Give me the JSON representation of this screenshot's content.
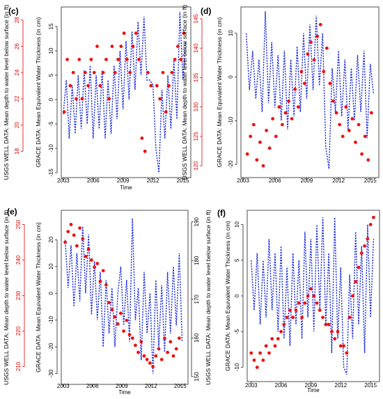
{
  "chart_data": [
    {
      "type": "line",
      "panel_label": "(c)",
      "xlabel": "Time",
      "ylabel_left": "USGS WELL DATA: Mean depth to water level below surface (in ft)",
      "ylabel_inner": "GRACE DATA: Mean Equivalent Water Thickness (in cm)",
      "x_ticks": [
        "2003",
        "2006",
        "2009",
        "2012",
        "2015"
      ],
      "xlim": [
        2002.8,
        2015.8
      ],
      "grace_ylim": [
        -16,
        19
      ],
      "grace_ticks": [
        -15,
        -10,
        -5,
        0,
        5,
        10,
        15
      ],
      "well_ylim": [
        16,
        29
      ],
      "well_ticks": [
        18,
        20,
        22,
        24,
        26,
        28
      ],
      "series": [
        {
          "name": "GRACE",
          "color": "#1f2fd8",
          "x": [
            2003.0,
            2003.3,
            2003.6,
            2003.9,
            2004.2,
            2004.5,
            2004.8,
            2005.1,
            2005.4,
            2005.7,
            2006.0,
            2006.3,
            2006.6,
            2006.9,
            2007.2,
            2007.5,
            2007.8,
            2008.1,
            2008.4,
            2008.7,
            2009.0,
            2009.3,
            2009.6,
            2009.9,
            2010.2,
            2010.5,
            2010.8,
            2011.1,
            2011.4,
            2011.7,
            2012.0,
            2012.3,
            2012.6,
            2012.9,
            2013.2,
            2013.5,
            2013.8,
            2014.1,
            2014.4,
            2014.7,
            2015.0,
            2015.3
          ],
          "y": [
            -3,
            4,
            -8,
            3,
            -7,
            5,
            -6,
            6,
            -5,
            7,
            -8,
            5,
            -6,
            6,
            -8,
            4,
            -7,
            7,
            -4,
            10,
            -2,
            12,
            0,
            14,
            2,
            16,
            5,
            17,
            4,
            4,
            3,
            -10,
            -15,
            2,
            -8,
            5,
            -6,
            8,
            -4,
            18,
            4,
            12
          ]
        },
        {
          "name": "USGS",
          "color": "#ee1111",
          "x": [
            2003.1,
            2003.4,
            2003.7,
            2004.0,
            2004.3,
            2004.6,
            2004.9,
            2005.2,
            2005.5,
            2005.8,
            2006.1,
            2006.4,
            2006.7,
            2007.0,
            2007.3,
            2007.6,
            2007.9,
            2008.2,
            2008.5,
            2008.8,
            2009.1,
            2009.4,
            2009.7,
            2010.0,
            2010.3,
            2010.6,
            2010.9,
            2011.2,
            2011.5,
            2011.8,
            2012.4,
            2012.7,
            2013.0,
            2013.3,
            2013.6,
            2013.9,
            2014.2,
            2014.5,
            2014.8,
            2015.1
          ],
          "y": [
            21,
            25,
            23,
            24,
            22,
            25,
            22,
            24,
            23,
            25,
            24,
            26,
            23,
            24,
            25,
            22,
            26,
            24,
            25,
            26,
            27,
            25,
            24,
            26,
            27,
            25,
            19,
            18,
            24,
            23,
            23,
            22,
            24,
            21,
            23,
            24,
            25,
            26,
            25,
            27
          ]
        }
      ]
    },
    {
      "type": "line",
      "panel_label": "(d)",
      "xlabel": "",
      "ylabel_left": "USGS WELL DATA: Mean depth to water level below surface (in ft)",
      "ylabel_inner": "GRACE DATA: Mean Equivalent Water Thickness (in cm)",
      "x_ticks": [
        "2003",
        "2006",
        "2009",
        "2012",
        "2015"
      ],
      "xlim": [
        2002.8,
        2015.8
      ],
      "grace_ylim": [
        -23,
        16
      ],
      "grace_ticks": [
        -20,
        -10,
        0,
        10
      ],
      "well_ylim": [
        118,
        147
      ],
      "well_ticks": [
        120,
        125,
        130,
        135,
        140,
        145
      ],
      "series": [
        {
          "name": "GRACE",
          "color": "#1f2fd8",
          "x": [
            2003.3,
            2003.6,
            2003.9,
            2004.2,
            2004.5,
            2004.8,
            2005.1,
            2005.4,
            2005.7,
            2006.0,
            2006.3,
            2006.6,
            2006.9,
            2007.2,
            2007.5,
            2007.8,
            2008.1,
            2008.4,
            2008.7,
            2009.0,
            2009.3,
            2009.6,
            2009.9,
            2010.2,
            2010.5,
            2010.8,
            2011.1,
            2011.4,
            2011.7,
            2012.0,
            2012.3,
            2012.6,
            2012.9,
            2013.2,
            2013.5,
            2013.8,
            2014.1,
            2014.4,
            2014.7,
            2015.0,
            2015.3
          ],
          "y": [
            10,
            -3,
            6,
            -5,
            4,
            -8,
            15,
            -6,
            8,
            -7,
            5,
            -10,
            6,
            -12,
            4,
            -9,
            7,
            -8,
            10,
            -5,
            12,
            -3,
            14,
            -2,
            10,
            -16,
            -21,
            2,
            -8,
            6,
            -9,
            4,
            -12,
            2,
            -10,
            5,
            -8,
            6,
            -14,
            3,
            -4
          ]
        },
        {
          "name": "USGS",
          "color": "#ee1111",
          "x": [
            2003.4,
            2003.7,
            2004.0,
            2004.3,
            2004.6,
            2004.9,
            2005.2,
            2005.5,
            2005.8,
            2006.1,
            2006.4,
            2006.7,
            2007.0,
            2007.3,
            2007.6,
            2007.9,
            2008.2,
            2008.5,
            2008.8,
            2009.1,
            2009.4,
            2009.7,
            2010.0,
            2010.3,
            2010.6,
            2010.9,
            2011.2,
            2011.5,
            2011.8,
            2012.1,
            2012.4,
            2012.7,
            2013.0,
            2013.3,
            2013.6,
            2013.9,
            2014.2,
            2014.5,
            2014.8,
            2015.1
          ],
          "y": [
            122,
            125,
            127,
            121,
            124,
            120,
            126,
            123,
            128,
            125,
            130,
            127,
            129,
            131,
            128,
            133,
            130,
            136,
            134,
            139,
            141,
            138,
            142,
            144,
            136,
            140,
            134,
            131,
            129,
            127,
            125,
            130,
            126,
            128,
            124,
            127,
            122,
            125,
            121,
            129
          ]
        }
      ]
    },
    {
      "type": "line",
      "panel_label": "(e)",
      "xlabel": "Time",
      "ylabel_left": "USGS WELL DATA: Mean depth to water level below surface (in ft)",
      "ylabel_inner": "GRACE DATA: Mean Equivalent Water Thickness (in cm)",
      "ylabel_right": "USGS WELL DATA: Mean depth to water level below surface (in ft)",
      "x_ticks": [
        "2003",
        "2006",
        "2009",
        "2012",
        "2015"
      ],
      "xlim": [
        2002.8,
        2015.8
      ],
      "grace_ylim": [
        -34,
        31
      ],
      "grace_ticks": [
        -30,
        -20,
        -10,
        0,
        10,
        20
      ],
      "well_ylim": [
        205,
        254
      ],
      "well_ticks": [
        210,
        220,
        230,
        240,
        250
      ],
      "right_ylim": [
        148,
        193
      ],
      "right_ticks": [
        150,
        160,
        170,
        180,
        190
      ],
      "series": [
        {
          "name": "GRACE",
          "color": "#1f2fd8",
          "x": [
            2003.2,
            2003.5,
            2003.8,
            2004.1,
            2004.4,
            2004.7,
            2005.0,
            2005.3,
            2005.6,
            2005.9,
            2006.2,
            2006.5,
            2006.8,
            2007.1,
            2007.4,
            2007.7,
            2008.0,
            2008.3,
            2008.6,
            2008.9,
            2009.2,
            2009.5,
            2009.8,
            2010.1,
            2010.4,
            2010.7,
            2011.0,
            2011.3,
            2011.6,
            2011.9,
            2012.2,
            2012.5,
            2012.8,
            2013.1,
            2013.4,
            2013.7,
            2014.0,
            2014.3,
            2014.6,
            2014.9,
            2015.2
          ],
          "y": [
            20,
            2,
            18,
            -5,
            15,
            -3,
            25,
            0,
            22,
            -8,
            12,
            -10,
            8,
            -20,
            5,
            -15,
            2,
            -20,
            0,
            10,
            -12,
            5,
            -18,
            28,
            -10,
            2,
            -25,
            8,
            -15,
            0,
            -30,
            5,
            -20,
            3,
            -22,
            8,
            -15,
            10,
            -12,
            15,
            -18
          ]
        },
        {
          "name": "USGS",
          "color": "#ee1111",
          "x": [
            2003.2,
            2003.5,
            2003.8,
            2004.1,
            2004.4,
            2004.7,
            2005.0,
            2005.3,
            2005.6,
            2005.9,
            2006.2,
            2006.5,
            2006.8,
            2007.1,
            2007.4,
            2007.7,
            2008.0,
            2008.3,
            2008.6,
            2008.9,
            2009.2,
            2009.5,
            2009.8,
            2010.1,
            2010.4,
            2010.7,
            2011.0,
            2011.3,
            2011.6,
            2011.9,
            2012.2,
            2012.5,
            2012.8,
            2013.1,
            2013.4,
            2013.7,
            2014.0,
            2014.3,
            2014.6,
            2014.9
          ],
          "y": [
            245,
            248,
            250,
            247,
            244,
            249,
            246,
            241,
            243,
            240,
            238,
            239,
            234,
            237,
            233,
            228,
            226,
            224,
            222,
            225,
            220,
            223,
            219,
            218,
            216,
            214,
            217,
            213,
            212,
            211,
            210,
            213,
            215,
            212,
            218,
            214,
            217,
            213,
            215,
            218
          ]
        }
      ]
    },
    {
      "type": "line",
      "panel_label": "(f)",
      "xlabel": "Time",
      "ylabel_inner": "GRACE DATA: Mean Equivalent Water Thickness (in cm)",
      "x_ticks": [
        "2003",
        "2006",
        "2009",
        "2012",
        "2015"
      ],
      "xlim": [
        2002.6,
        2015.9
      ],
      "grace_ylim": [
        -12,
        12
      ],
      "grace_ticks": [
        -10,
        -5,
        0,
        5,
        10
      ],
      "series": [
        {
          "name": "GRACE",
          "color": "#1f2fd8",
          "x": [
            2003.0,
            2003.3,
            2003.6,
            2003.9,
            2004.2,
            2004.5,
            2004.8,
            2005.1,
            2005.4,
            2005.7,
            2006.0,
            2006.3,
            2006.6,
            2006.9,
            2007.2,
            2007.5,
            2007.8,
            2008.1,
            2008.4,
            2008.7,
            2009.0,
            2009.3,
            2009.6,
            2009.9,
            2010.2,
            2010.5,
            2010.8,
            2011.1,
            2011.4,
            2011.7,
            2012.0,
            2012.3,
            2012.6,
            2012.9,
            2013.2,
            2013.5,
            2013.8,
            2014.1,
            2014.4,
            2014.7,
            2015.0,
            2015.3
          ],
          "y": [
            5,
            -2,
            6,
            -4,
            5,
            -3,
            8,
            -2,
            6,
            -5,
            7,
            -6,
            4,
            -7,
            6,
            -4,
            5,
            -6,
            9,
            -3,
            8,
            -5,
            10,
            -2,
            11,
            -4,
            6,
            -8,
            11,
            -6,
            4,
            -10,
            -11,
            3,
            -6,
            9,
            -4,
            7,
            -8,
            10,
            -3,
            8
          ]
        },
        {
          "name": "USGS",
          "color": "#ee1111",
          "x": [
            2003.0,
            2003.3,
            2003.6,
            2003.9,
            2004.2,
            2004.5,
            2004.8,
            2005.1,
            2005.4,
            2005.7,
            2006.0,
            2006.3,
            2006.6,
            2006.9,
            2007.2,
            2007.5,
            2007.8,
            2008.1,
            2008.4,
            2008.7,
            2009.0,
            2009.3,
            2009.6,
            2009.9,
            2010.2,
            2010.5,
            2010.8,
            2011.1,
            2011.4,
            2011.7,
            2012.0,
            2012.3,
            2012.6,
            2012.9,
            2013.2,
            2013.5,
            2013.8,
            2014.1,
            2014.4,
            2014.7,
            2015.0,
            2015.3
          ],
          "y": [
            -8,
            -9,
            -10,
            -8,
            -9,
            -7,
            -8,
            -6,
            -7,
            -6,
            -5,
            -4,
            -3,
            -2,
            -3,
            -2,
            -1,
            -3,
            -1,
            0,
            1,
            0,
            -1,
            -2,
            -3,
            -4,
            -4,
            -5,
            -6,
            -5,
            -7,
            -7,
            -8,
            -3,
            0,
            2,
            4,
            6,
            7,
            8,
            10,
            11
          ]
        }
      ]
    }
  ]
}
